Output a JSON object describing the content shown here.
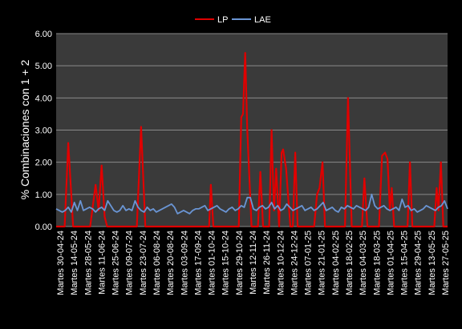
{
  "chart_data": {
    "type": "line",
    "title": "",
    "xlabel": "",
    "ylabel": "% Combinaciones con 1 + 2",
    "ylim": [
      0,
      6
    ],
    "y_ticks": [
      "0.00",
      "1.00",
      "2.00",
      "3.00",
      "4.00",
      "5.00",
      "6.00"
    ],
    "grid": true,
    "legend_position": "top",
    "x_tick_labels": [
      "Martes 30-04-24",
      "Martes 14-05-24",
      "Martes 28-05-24",
      "Martes 11-06-24",
      "Martes 25-06-24",
      "Martes 09-07-24",
      "Martes 23-07-24",
      "Martes 06-08-24",
      "Martes 20-08-24",
      "Martes 03-09-24",
      "Martes 17-09-24",
      "Martes 01-10-24",
      "Martes 15-10-24",
      "Martes 29-10-24",
      "Martes 12-11-24",
      "Martes 26-11-24",
      "Martes 10-12-24",
      "Martes 24-12-24",
      "Martes 07-01-25",
      "Martes 21-01-25",
      "Martes 04-02-25",
      "Martes 18-02-25",
      "Martes 04-03-25",
      "Martes 18-03-25",
      "Martes 01-04-25",
      "Martes 15-04-25",
      "Martes 29-04-25",
      "Martes 13-05-25",
      "Martes 27-05-25"
    ],
    "series": [
      {
        "name": "LP",
        "color": "#e00000",
        "points": [
          [
            0,
            0
          ],
          [
            2.8,
            0
          ],
          [
            4,
            2.6
          ],
          [
            5.6,
            0
          ],
          [
            11.2,
            0
          ],
          [
            13,
            1.3
          ],
          [
            14,
            0.5
          ],
          [
            15,
            1.9
          ],
          [
            16,
            0.3
          ],
          [
            16.8,
            0
          ],
          [
            26.6,
            0
          ],
          [
            28,
            3.1
          ],
          [
            29.4,
            0
          ],
          [
            50.4,
            0
          ],
          [
            51,
            1.3
          ],
          [
            51.8,
            0
          ],
          [
            60.2,
            0
          ],
          [
            61,
            3.4
          ],
          [
            61.6,
            3.5
          ],
          [
            62.3,
            5.4
          ],
          [
            63,
            3
          ],
          [
            64.4,
            0
          ],
          [
            66.5,
            0
          ],
          [
            67.3,
            1.7
          ],
          [
            68.2,
            0
          ],
          [
            70.2,
            0
          ],
          [
            71,
            3
          ],
          [
            71.8,
            0.5
          ],
          [
            72.5,
            1.8
          ],
          [
            73.5,
            0
          ],
          [
            74.3,
            2.3
          ],
          [
            74.8,
            2.4
          ],
          [
            75.8,
            1.8
          ],
          [
            77.2,
            0
          ],
          [
            78,
            0
          ],
          [
            78.8,
            2.3
          ],
          [
            79.6,
            0
          ],
          [
            85,
            0
          ],
          [
            86,
            1
          ],
          [
            86.8,
            1.2
          ],
          [
            87.8,
            2
          ],
          [
            88.6,
            0
          ],
          [
            95.2,
            0
          ],
          [
            96.2,
            4
          ],
          [
            97.4,
            0
          ],
          [
            100.8,
            0
          ],
          [
            101.6,
            1.5
          ],
          [
            102.6,
            0
          ],
          [
            106.4,
            0
          ],
          [
            107.4,
            2.2
          ],
          [
            108.4,
            2.3
          ],
          [
            109.2,
            2.1
          ],
          [
            110,
            0.5
          ],
          [
            110.6,
            1.2
          ],
          [
            111.4,
            0
          ],
          [
            115.8,
            0
          ],
          [
            116.6,
            2
          ],
          [
            117.4,
            0
          ],
          [
            124.6,
            0
          ],
          [
            125.4,
            1.2
          ],
          [
            126,
            0.5
          ],
          [
            126.8,
            2
          ],
          [
            127.6,
            0
          ],
          [
            129,
            0
          ]
        ]
      },
      {
        "name": "LAE",
        "color": "#6a95d4",
        "points": [
          [
            0,
            0.55
          ],
          [
            1,
            0.5
          ],
          [
            2,
            0.45
          ],
          [
            3,
            0.5
          ],
          [
            4,
            0.6
          ],
          [
            5,
            0.45
          ],
          [
            6,
            0.75
          ],
          [
            7,
            0.5
          ],
          [
            8,
            0.8
          ],
          [
            9,
            0.5
          ],
          [
            10,
            0.55
          ],
          [
            11,
            0.6
          ],
          [
            12,
            0.55
          ],
          [
            13,
            0.45
          ],
          [
            14,
            0.55
          ],
          [
            15,
            0.6
          ],
          [
            16,
            0.5
          ],
          [
            17,
            0.8
          ],
          [
            18,
            0.65
          ],
          [
            19,
            0.5
          ],
          [
            20,
            0.45
          ],
          [
            21,
            0.5
          ],
          [
            22,
            0.65
          ],
          [
            23,
            0.5
          ],
          [
            24,
            0.55
          ],
          [
            25,
            0.5
          ],
          [
            26,
            0.8
          ],
          [
            27,
            0.6
          ],
          [
            28,
            0.5
          ],
          [
            29,
            0.45
          ],
          [
            30,
            0.6
          ],
          [
            31,
            0.5
          ],
          [
            32,
            0.55
          ],
          [
            33,
            0.45
          ],
          [
            34,
            0.5
          ],
          [
            35,
            0.55
          ],
          [
            36,
            0.6
          ],
          [
            37,
            0.65
          ],
          [
            38,
            0.7
          ],
          [
            39,
            0.6
          ],
          [
            40,
            0.4
          ],
          [
            41,
            0.45
          ],
          [
            42,
            0.5
          ],
          [
            43,
            0.45
          ],
          [
            44,
            0.4
          ],
          [
            45,
            0.5
          ],
          [
            46,
            0.55
          ],
          [
            47,
            0.55
          ],
          [
            48,
            0.6
          ],
          [
            49,
            0.65
          ],
          [
            50,
            0.5
          ],
          [
            51,
            0.55
          ],
          [
            52,
            0.6
          ],
          [
            53,
            0.65
          ],
          [
            54,
            0.55
          ],
          [
            55,
            0.5
          ],
          [
            56,
            0.45
          ],
          [
            57,
            0.55
          ],
          [
            58,
            0.6
          ],
          [
            59,
            0.5
          ],
          [
            60,
            0.55
          ],
          [
            61,
            0.65
          ],
          [
            62,
            0.6
          ],
          [
            63,
            0.9
          ],
          [
            64,
            0.9
          ],
          [
            65,
            0.55
          ],
          [
            66,
            0.5
          ],
          [
            67,
            0.6
          ],
          [
            68,
            0.65
          ],
          [
            69,
            0.55
          ],
          [
            70,
            0.6
          ],
          [
            71,
            0.75
          ],
          [
            72,
            0.55
          ],
          [
            73,
            0.65
          ],
          [
            74,
            0.5
          ],
          [
            75,
            0.55
          ],
          [
            76,
            0.7
          ],
          [
            77,
            0.6
          ],
          [
            78,
            0.5
          ],
          [
            79,
            0.55
          ],
          [
            80,
            0.6
          ],
          [
            81,
            0.65
          ],
          [
            82,
            0.5
          ],
          [
            83,
            0.55
          ],
          [
            84,
            0.6
          ],
          [
            85,
            0.5
          ],
          [
            86,
            0.55
          ],
          [
            87,
            0.65
          ],
          [
            88,
            0.75
          ],
          [
            89,
            0.5
          ],
          [
            90,
            0.55
          ],
          [
            91,
            0.6
          ],
          [
            92,
            0.5
          ],
          [
            93,
            0.45
          ],
          [
            94,
            0.6
          ],
          [
            95,
            0.55
          ],
          [
            96,
            0.65
          ],
          [
            97,
            0.6
          ],
          [
            98,
            0.55
          ],
          [
            99,
            0.65
          ],
          [
            100,
            0.6
          ],
          [
            101,
            0.55
          ],
          [
            102,
            0.5
          ],
          [
            103,
            0.6
          ],
          [
            104,
            1.0
          ],
          [
            105,
            0.65
          ],
          [
            106,
            0.55
          ],
          [
            107,
            0.6
          ],
          [
            108,
            0.65
          ],
          [
            109,
            0.55
          ],
          [
            110,
            0.5
          ],
          [
            111,
            0.55
          ],
          [
            112,
            0.6
          ],
          [
            113,
            0.5
          ],
          [
            114,
            0.85
          ],
          [
            115,
            0.6
          ],
          [
            116,
            0.65
          ],
          [
            117,
            0.5
          ],
          [
            118,
            0.55
          ],
          [
            119,
            0.45
          ],
          [
            120,
            0.5
          ],
          [
            121,
            0.55
          ],
          [
            122,
            0.65
          ],
          [
            123,
            0.6
          ],
          [
            124,
            0.55
          ],
          [
            125,
            0.5
          ],
          [
            126,
            0.6
          ],
          [
            127,
            0.65
          ],
          [
            128,
            0.8
          ],
          [
            129,
            0.55
          ]
        ]
      }
    ]
  }
}
